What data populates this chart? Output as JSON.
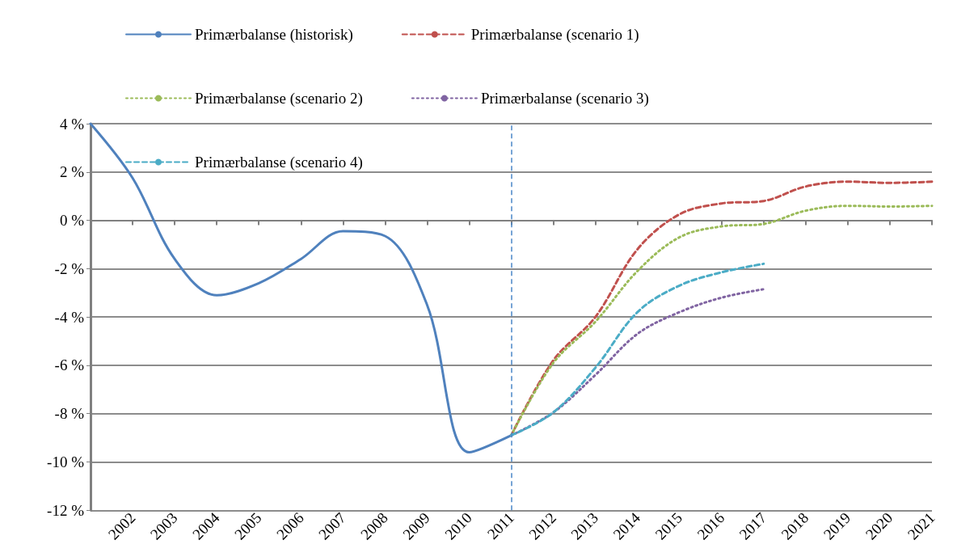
{
  "chart_data": {
    "type": "line",
    "categories": [
      null,
      "2002",
      "2003",
      "2004",
      "2005",
      "2006",
      "2007",
      "2008",
      "2009",
      "2010",
      "2011",
      "2012",
      "2013",
      "2014",
      "2015",
      "2016",
      "2017",
      "2018",
      "2019",
      "2020",
      "2021"
    ],
    "series": [
      {
        "name": "Primærbalanse (historisk)",
        "color": "#4f81bd",
        "line_style": "solid",
        "values": [
          4.0,
          1.75,
          -1.6,
          -3.1,
          -2.6,
          -1.6,
          -0.45,
          -0.65,
          -3.5,
          -9.6,
          -8.9,
          null,
          null,
          null,
          null,
          null,
          null,
          null,
          null,
          null,
          null
        ]
      },
      {
        "name": "Primærbalanse (scenario 1)",
        "color": "#c0504d",
        "line_style": "dashed",
        "values": [
          null,
          null,
          null,
          null,
          null,
          null,
          null,
          null,
          null,
          null,
          -8.9,
          -5.8,
          -4.0,
          -1.2,
          0.25,
          0.7,
          0.8,
          1.4,
          1.6,
          1.55,
          1.6
        ]
      },
      {
        "name": "Primærbalanse (scenario 2)",
        "color": "#9bbb59",
        "line_style": "dotted",
        "values": [
          null,
          null,
          null,
          null,
          null,
          null,
          null,
          null,
          null,
          null,
          -8.9,
          -5.9,
          -4.2,
          -2.1,
          -0.7,
          -0.25,
          -0.15,
          0.4,
          0.6,
          0.57,
          0.6
        ]
      },
      {
        "name": "Primærbalanse (scenario 3)",
        "color": "#8064a2",
        "line_style": "dotted",
        "values": [
          null,
          null,
          null,
          null,
          null,
          null,
          null,
          null,
          null,
          null,
          -8.9,
          -7.95,
          -6.4,
          -4.7,
          -3.8,
          -3.2,
          -2.85,
          null,
          null,
          null,
          null
        ]
      },
      {
        "name": "Primærbalanse (scenario 4)",
        "color": "#4bacc6",
        "line_style": "dashed",
        "values": [
          null,
          null,
          null,
          null,
          null,
          null,
          null,
          null,
          null,
          null,
          -8.9,
          -7.95,
          -6.1,
          -3.8,
          -2.7,
          -2.15,
          -1.8,
          null,
          null,
          null,
          null
        ]
      }
    ],
    "ylim": [
      -12,
      4
    ],
    "yticks": [
      {
        "value": -12,
        "label": "-12 %"
      },
      {
        "value": -10,
        "label": "-10 %"
      },
      {
        "value": -8,
        "label": "-8 %"
      },
      {
        "value": -6,
        "label": "-6 %"
      },
      {
        "value": -4,
        "label": "-4 %"
      },
      {
        "value": -2,
        "label": "-2 %"
      },
      {
        "value": 0,
        "label": "0 %"
      },
      {
        "value": 2,
        "label": "2 %"
      },
      {
        "value": 4,
        "label": "4 %"
      }
    ],
    "ref_lines": [
      {
        "axis": "x",
        "value": "2011",
        "color": "#4a86c8",
        "line_style": "dashed"
      }
    ],
    "grid": "y",
    "legend": "top",
    "marker": "none"
  }
}
